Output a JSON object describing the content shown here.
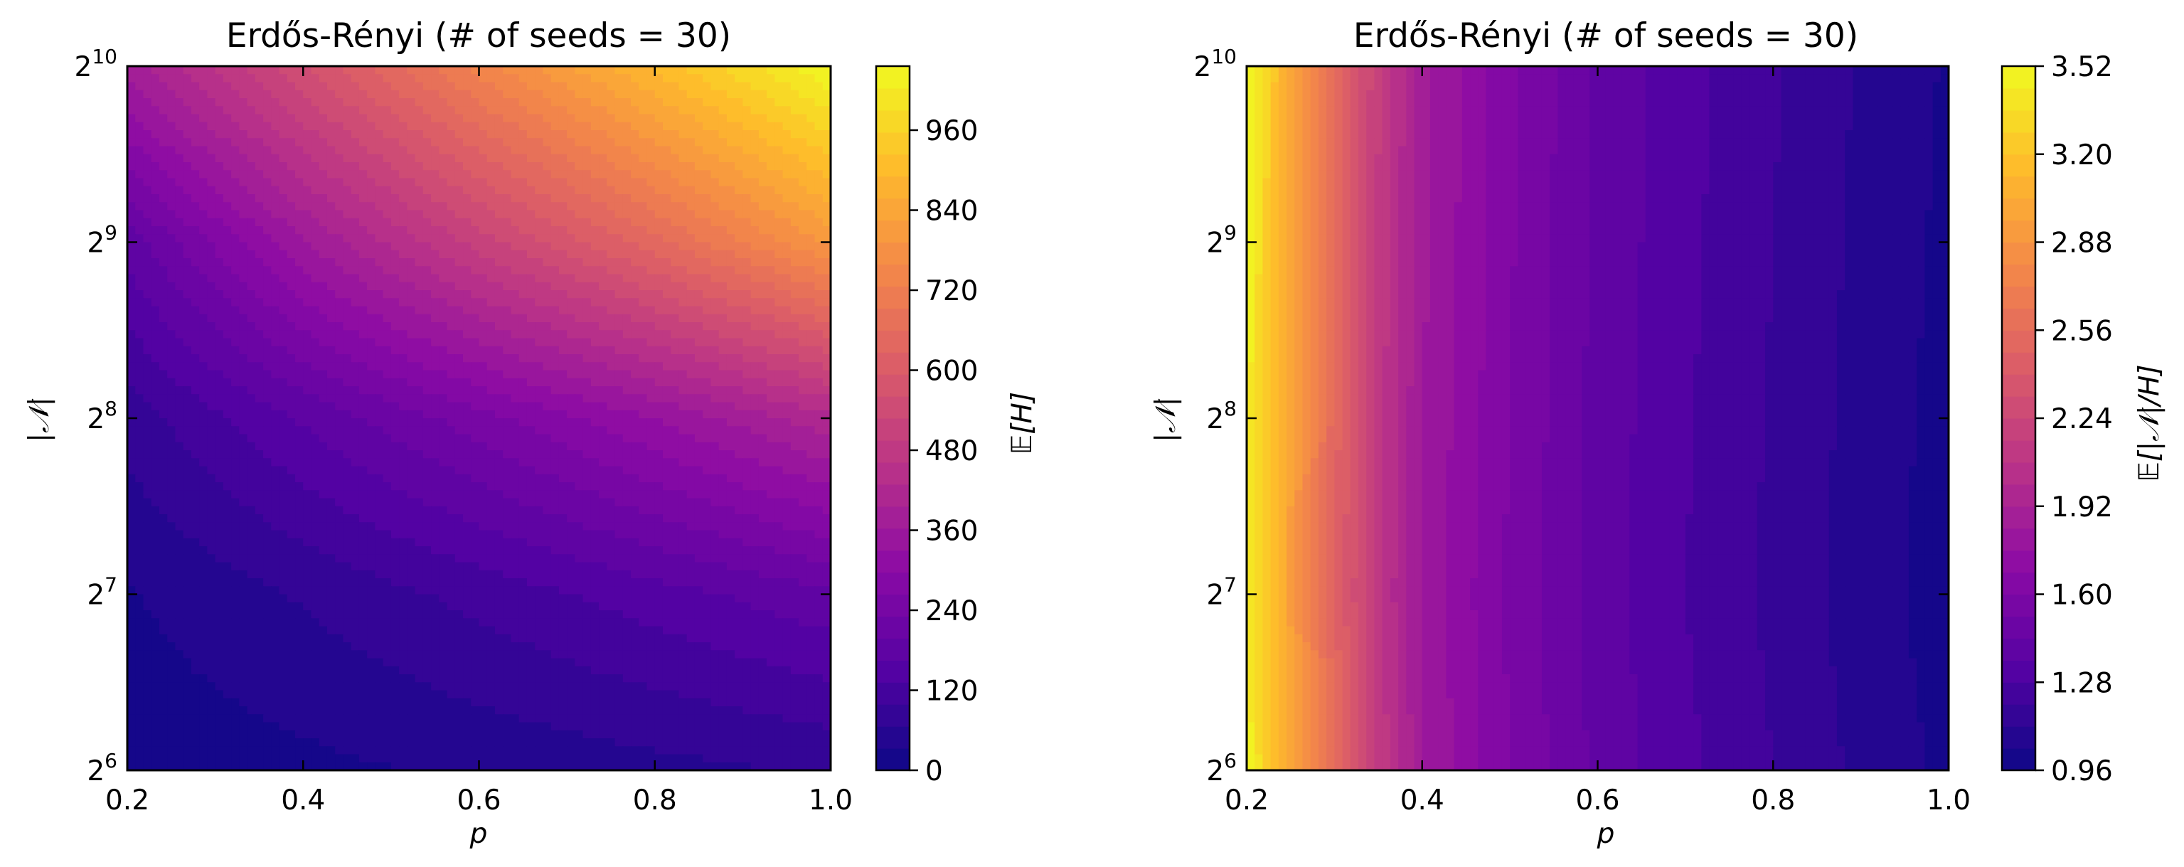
{
  "chart_data": [
    {
      "type": "heatmap",
      "subtype": "filled-contour",
      "title": "Erdős-Rényi (# of seeds = 30)",
      "xlabel": "p",
      "ylabel": "|𝒩|",
      "y_scale": "log2",
      "xlim": [
        0.2,
        1.0
      ],
      "ylim": [
        64,
        1024
      ],
      "x_ticks": [
        "0.2",
        "0.4",
        "0.6",
        "0.8",
        "1.0"
      ],
      "y_ticks": [
        {
          "base": "2",
          "exp": "6"
        },
        {
          "base": "2",
          "exp": "7"
        },
        {
          "base": "2",
          "exp": "8"
        },
        {
          "base": "2",
          "exp": "9"
        },
        {
          "base": "2",
          "exp": "10"
        }
      ],
      "colormap": "plasma",
      "colorbar": {
        "label": "𝔼[H]",
        "range": [
          0,
          1056
        ],
        "ticks": [
          "0",
          "120",
          "240",
          "360",
          "480",
          "600",
          "720",
          "840",
          "960"
        ]
      },
      "x": [
        0.2,
        0.4,
        0.6,
        0.8,
        1.0
      ],
      "y": [
        64,
        128,
        256,
        512,
        1024
      ],
      "z": [
        [
          12,
          24,
          40,
          55,
          70
        ],
        [
          30,
          70,
          110,
          150,
          190
        ],
        [
          80,
          170,
          250,
          330,
          420
        ],
        [
          180,
          360,
          510,
          650,
          800
        ],
        [
          380,
          560,
          740,
          900,
          1056
        ]
      ]
    },
    {
      "type": "heatmap",
      "subtype": "filled-contour",
      "title": "Erdős-Rényi (# of seeds = 30)",
      "xlabel": "p",
      "ylabel": "|𝒩|",
      "y_scale": "log2",
      "xlim": [
        0.2,
        1.0
      ],
      "ylim": [
        64,
        1024
      ],
      "x_ticks": [
        "0.2",
        "0.4",
        "0.6",
        "0.8",
        "1.0"
      ],
      "y_ticks": [
        {
          "base": "2",
          "exp": "6"
        },
        {
          "base": "2",
          "exp": "7"
        },
        {
          "base": "2",
          "exp": "8"
        },
        {
          "base": "2",
          "exp": "9"
        },
        {
          "base": "2",
          "exp": "10"
        }
      ],
      "colormap": "plasma",
      "colorbar": {
        "label": "𝔼[|𝒩|/H]",
        "range": [
          0.96,
          3.52
        ],
        "ticks": [
          "0.96",
          "1.28",
          "1.60",
          "1.92",
          "2.24",
          "2.56",
          "2.88",
          "3.20",
          "3.52"
        ]
      },
      "x": [
        0.2,
        0.25,
        0.3,
        0.35,
        0.4,
        0.5,
        0.6,
        0.7,
        0.8,
        0.9,
        1.0
      ],
      "y": [
        64,
        128,
        256,
        512,
        1024
      ],
      "z": [
        [
          3.5,
          3.0,
          2.55,
          2.15,
          1.85,
          1.6,
          1.42,
          1.3,
          1.2,
          1.1,
          1.02
        ],
        [
          3.45,
          2.95,
          2.5,
          2.1,
          1.82,
          1.58,
          1.4,
          1.28,
          1.18,
          1.08,
          1.0
        ],
        [
          3.48,
          2.97,
          2.52,
          2.12,
          1.84,
          1.6,
          1.41,
          1.29,
          1.19,
          1.09,
          1.01
        ],
        [
          3.5,
          3.0,
          2.55,
          2.15,
          1.86,
          1.61,
          1.42,
          1.3,
          1.2,
          1.1,
          1.02
        ],
        [
          3.52,
          3.02,
          2.57,
          2.17,
          1.87,
          1.62,
          1.43,
          1.31,
          1.21,
          1.11,
          1.03
        ]
      ]
    }
  ]
}
